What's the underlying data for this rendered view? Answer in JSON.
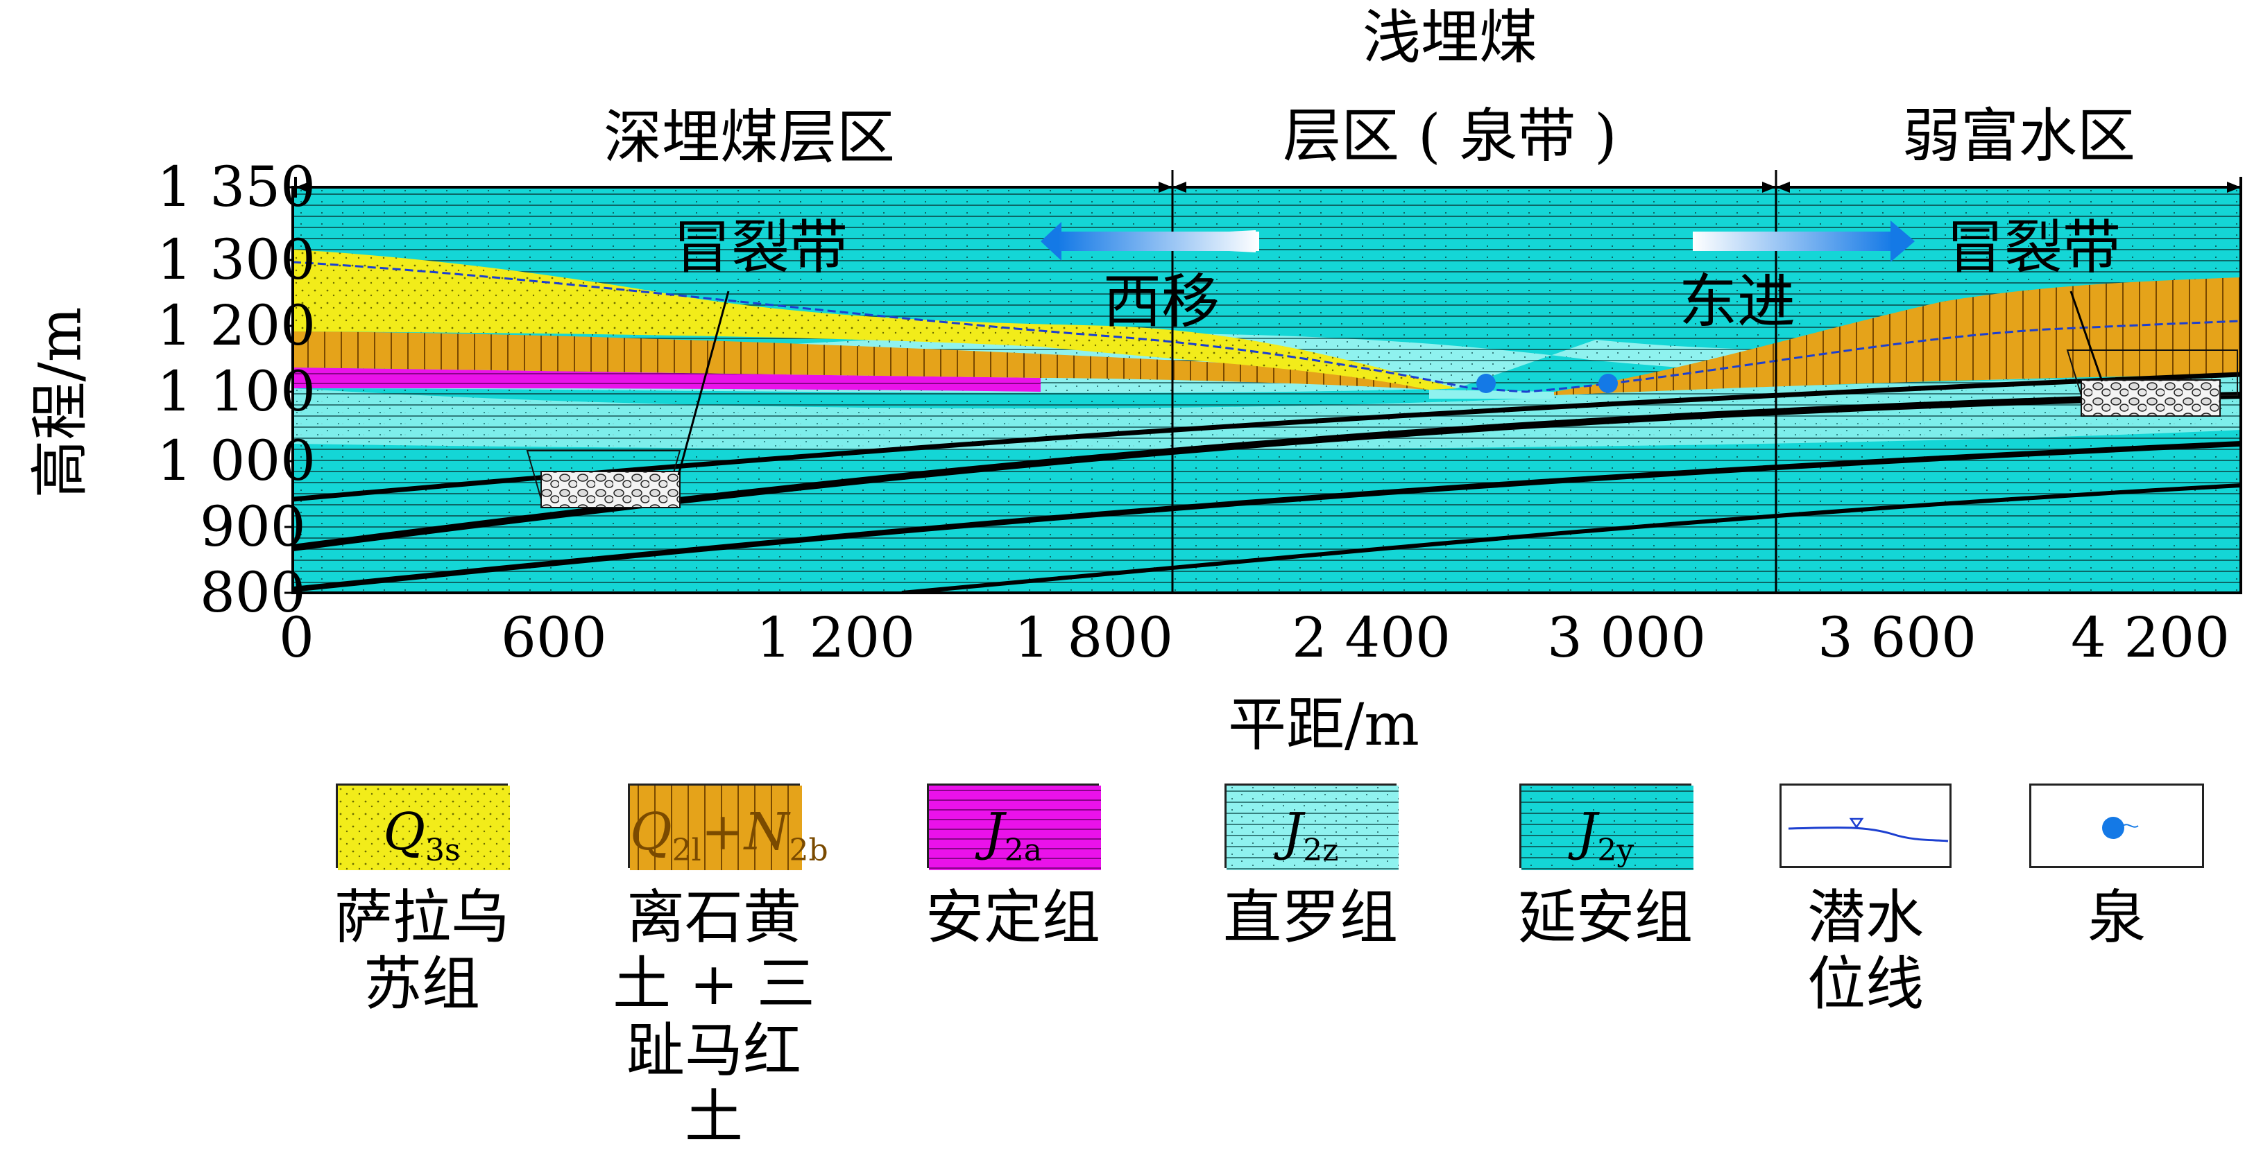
{
  "zones": {
    "deep": "深埋煤层区",
    "shallow_line1": "浅埋煤",
    "shallow_line2": "层区 ( 泉带 )",
    "weak": "弱富水区"
  },
  "annotations": {
    "caving_zone_left": "冒裂带",
    "caving_zone_right": "冒裂带",
    "west_shift": "西移",
    "east_advance": "东进"
  },
  "y_axis": {
    "title": "高程/m",
    "ticks": [
      "1 350",
      "1 300",
      "1 200",
      "1 100",
      "1 000",
      "900",
      "800"
    ]
  },
  "x_axis": {
    "title": "平距/m",
    "ticks": [
      "0",
      "600",
      "1 200",
      "1 800",
      "2 400",
      "3 000",
      "3 600",
      "4 200"
    ]
  },
  "legend": [
    {
      "symbol": "Q",
      "sub": "3s",
      "caption_lines": [
        "萨拉乌",
        "苏组"
      ],
      "color": "#f2ec1a"
    },
    {
      "symbol": "Q",
      "sub": "2l",
      "symbol2": "+N",
      "sub2": "2b",
      "caption_lines": [
        "离石黄",
        "土 + 三",
        "趾马红土"
      ],
      "color": "#e5a31a"
    },
    {
      "symbol": "J",
      "sub": "2a",
      "caption_lines": [
        "安定组"
      ],
      "color": "#ea12ea"
    },
    {
      "symbol": "J",
      "sub": "2z",
      "caption_lines": [
        "直罗组"
      ],
      "color": "#8ff2ef"
    },
    {
      "symbol": "J",
      "sub": "2y",
      "caption_lines": [
        "延安组"
      ],
      "color": "#14d6d6"
    },
    {
      "caption_lines": [
        "潜水",
        "位线"
      ],
      "icon": "water-table-line"
    },
    {
      "caption_lines": [
        "泉"
      ],
      "icon": "spring-dot"
    }
  ],
  "colors": {
    "yellow": "#f2ec1a",
    "orange": "#e5a31a",
    "magenta": "#ea12ea",
    "light_cyan": "#8ff2ef",
    "cyan": "#14d6d6",
    "water": "#1479e6"
  }
}
